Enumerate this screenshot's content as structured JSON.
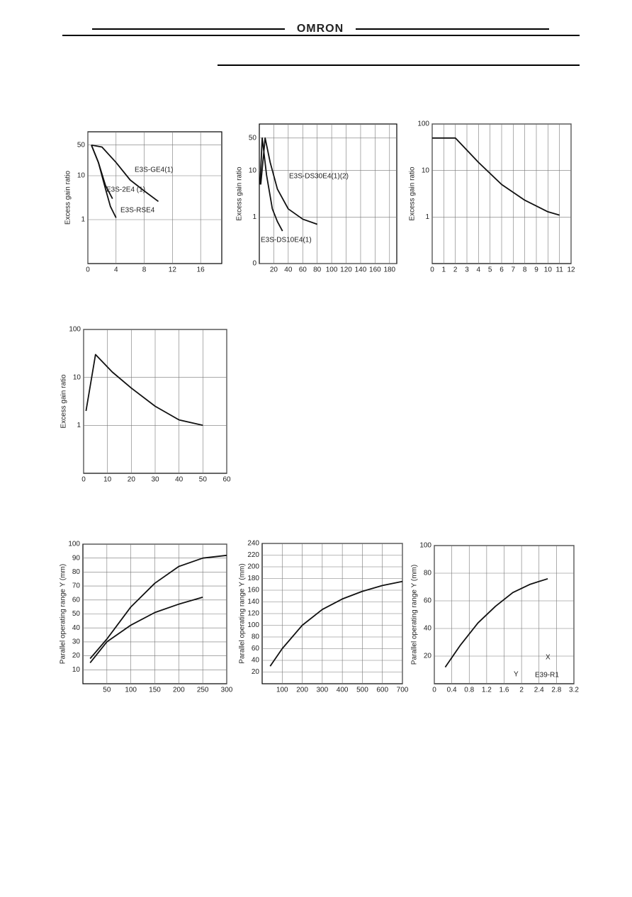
{
  "header": {
    "logo": "OMRON"
  },
  "chart_data": [
    {
      "type": "line",
      "ylabel": "Excess gain ratio",
      "log_y": true,
      "grid": true,
      "xlim": [
        0,
        19
      ],
      "xticks": [
        0,
        4,
        8,
        12,
        16
      ],
      "ylim": [
        0.1,
        100
      ],
      "yticks": [
        1,
        10,
        50
      ],
      "series": [
        {
          "name": "E3S-GE4(1)",
          "color": "#111",
          "x": [
            0.5,
            2,
            4,
            6,
            8,
            10
          ],
          "values": [
            50,
            45,
            20,
            8,
            4.5,
            2.6
          ]
        },
        {
          "name": "E3S-2E4 (1)",
          "color": "#111",
          "x": [
            0.5,
            1.5,
            2.5,
            3.5
          ],
          "values": [
            50,
            20,
            6,
            3
          ]
        },
        {
          "name": "E3S-RSE4",
          "color": "#111",
          "x": [
            0.5,
            1.5,
            2.5,
            3.2,
            4
          ],
          "values": [
            50,
            20,
            5,
            2,
            1.1
          ]
        }
      ]
    },
    {
      "type": "line",
      "ylabel": "Excess gain ratio",
      "log_y": true,
      "grid": true,
      "xlim": [
        0,
        190
      ],
      "xticks": [
        20,
        40,
        60,
        80,
        100,
        120,
        140,
        160,
        180
      ],
      "ylim": [
        0.1,
        100
      ],
      "yticks": [
        {
          "value": 0.1,
          "label": "0"
        },
        1,
        10,
        50
      ],
      "series": [
        {
          "name": "E3S-DS30E4(1)(2)",
          "color": "#111",
          "x": [
            2,
            8,
            15,
            25,
            40,
            60,
            80
          ],
          "values": [
            5,
            50,
            15,
            4,
            1.5,
            0.9,
            0.7
          ]
        },
        {
          "name": "E3S-DS10E4(1)",
          "color": "#111",
          "x": [
            1,
            4,
            10,
            18,
            25,
            32
          ],
          "values": [
            5,
            50,
            8,
            1.5,
            0.8,
            0.5
          ]
        }
      ]
    },
    {
      "type": "line",
      "ylabel": "Excess gain ratio",
      "log_y": true,
      "grid": true,
      "xlim": [
        0,
        12
      ],
      "xticks": [
        0,
        1,
        2,
        3,
        4,
        5,
        6,
        7,
        8,
        9,
        10,
        11,
        12
      ],
      "ylim": [
        0.1,
        100
      ],
      "yticks": [
        1,
        10,
        100
      ],
      "series": [
        {
          "color": "#111",
          "x": [
            0,
            2,
            4,
            6,
            8,
            10,
            11
          ],
          "values": [
            50,
            50,
            15,
            5,
            2.3,
            1.3,
            1.1
          ]
        }
      ]
    },
    {
      "type": "line",
      "ylabel": "Excess gain ratio",
      "log_y": true,
      "grid": true,
      "xlim": [
        0,
        60
      ],
      "xticks": [
        0,
        10,
        20,
        30,
        40,
        50,
        60
      ],
      "ylim": [
        0.1,
        100
      ],
      "yticks": [
        1,
        10,
        100
      ],
      "series": [
        {
          "color": "#111",
          "x": [
            1,
            5,
            12,
            20,
            30,
            40,
            50
          ],
          "values": [
            2,
            30,
            13,
            6,
            2.5,
            1.3,
            1
          ]
        }
      ]
    },
    {
      "type": "line",
      "ylabel": "Parallel operating range Y  (mm)",
      "log_y": false,
      "grid": true,
      "xlim": [
        0,
        300
      ],
      "xticks": [
        50,
        100,
        150,
        200,
        250,
        300
      ],
      "ylim": [
        0,
        100
      ],
      "yticks": [
        10,
        20,
        30,
        40,
        50,
        60,
        70,
        80,
        90,
        100
      ],
      "series": [
        {
          "color": "#111",
          "x": [
            15,
            50,
            100,
            150,
            200,
            250,
            300
          ],
          "values": [
            18,
            32,
            55,
            72,
            84,
            90,
            92
          ]
        },
        {
          "color": "#111",
          "x": [
            15,
            50,
            100,
            150,
            200,
            250
          ],
          "values": [
            15,
            30,
            42,
            51,
            57,
            62
          ]
        }
      ]
    },
    {
      "type": "line",
      "ylabel": "Parallel operating range Y  (mm)",
      "log_y": false,
      "grid": true,
      "xlim": [
        0,
        700
      ],
      "xticks": [
        100,
        200,
        300,
        400,
        500,
        600,
        700
      ],
      "ylim": [
        0,
        240
      ],
      "yticks": [
        20,
        40,
        60,
        80,
        100,
        120,
        140,
        160,
        180,
        200,
        220,
        240
      ],
      "series": [
        {
          "color": "#111",
          "x": [
            40,
            100,
            200,
            300,
            400,
            500,
            600,
            700
          ],
          "values": [
            30,
            60,
            100,
            127,
            145,
            158,
            168,
            175
          ]
        }
      ]
    },
    {
      "type": "line",
      "ylabel": "Parallel operating range Y  (mm)",
      "log_y": false,
      "grid": true,
      "xlim": [
        0,
        3.2
      ],
      "xticks": [
        0,
        0.4,
        0.8,
        1.2,
        1.6,
        2,
        2.4,
        2.8,
        3.2
      ],
      "ylim": [
        0,
        100
      ],
      "yticks": [
        20,
        40,
        60,
        80,
        100
      ],
      "annotations": [
        "X",
        "Y",
        "E39-R1"
      ],
      "series": [
        {
          "color": "#111",
          "x": [
            0.25,
            0.6,
            1,
            1.4,
            1.8,
            2.2,
            2.6
          ],
          "values": [
            12,
            28,
            44,
            56,
            66,
            72,
            76
          ]
        }
      ]
    }
  ]
}
